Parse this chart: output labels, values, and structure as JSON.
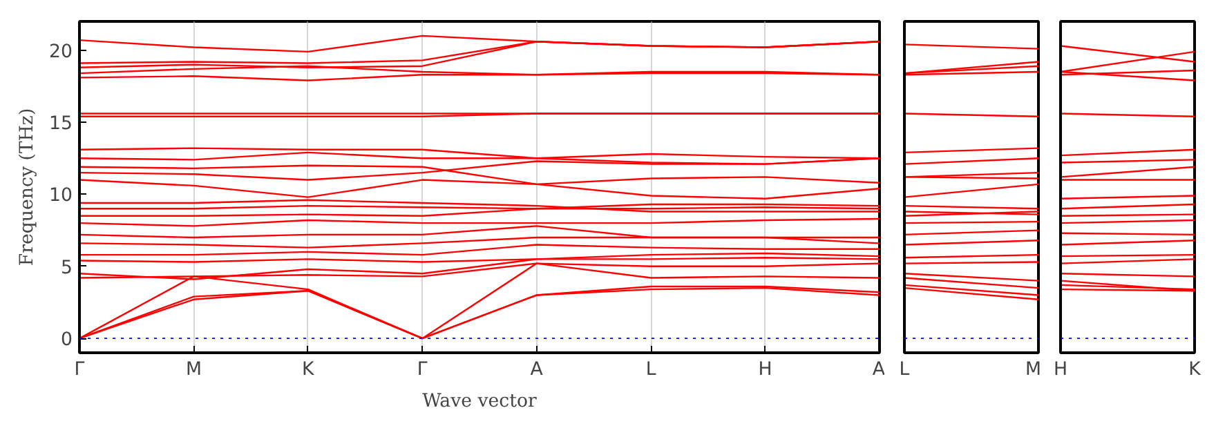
{
  "chart_data": [
    {
      "type": "line",
      "ylabel": "Frequency (THz)",
      "xlabel": "Wave vector",
      "categories": [
        "Γ",
        "M",
        "K",
        "Γ",
        "A",
        "L",
        "H",
        "A"
      ],
      "ylim": [
        -1,
        22
      ],
      "yticks": [
        0,
        5,
        10,
        15,
        20
      ],
      "grid": "x",
      "ref_lines": [
        {
          "axis": "y",
          "value": 0,
          "color": "#0000ff",
          "line_style": "dotted"
        }
      ],
      "series": [
        {
          "color": "#ff0000",
          "values": [
            0,
            2.7,
            3.3,
            0,
            3.0,
            3.4,
            3.5,
            3.0
          ]
        },
        {
          "color": "#ff0000",
          "values": [
            0,
            2.9,
            3.3,
            0,
            3.0,
            3.6,
            3.6,
            3.2
          ]
        },
        {
          "color": "#ff0000",
          "values": [
            0,
            4.3,
            3.4,
            0,
            5.2,
            4.2,
            4.3,
            4.2
          ]
        },
        {
          "color": "#ff0000",
          "values": [
            4.2,
            4.3,
            4.4,
            4.3,
            5.2,
            5.0,
            5.0,
            5.2
          ]
        },
        {
          "color": "#ff0000",
          "values": [
            4.5,
            4.1,
            4.8,
            4.5,
            5.5,
            5.5,
            5.6,
            5.5
          ]
        },
        {
          "color": "#ff0000",
          "values": [
            5.4,
            5.3,
            5.5,
            5.3,
            5.5,
            5.8,
            5.9,
            5.7
          ]
        },
        {
          "color": "#ff0000",
          "values": [
            5.8,
            5.8,
            6.0,
            5.8,
            6.5,
            6.3,
            6.2,
            6.2
          ]
        },
        {
          "color": "#ff0000",
          "values": [
            6.6,
            6.5,
            6.3,
            6.6,
            7.0,
            7.0,
            7.0,
            6.6
          ]
        },
        {
          "color": "#ff0000",
          "values": [
            7.2,
            7.0,
            7.2,
            7.2,
            7.8,
            7.0,
            7.0,
            7.0
          ]
        },
        {
          "color": "#ff0000",
          "values": [
            8.0,
            7.8,
            8.2,
            8.0,
            8.0,
            8.0,
            8.2,
            8.3
          ]
        },
        {
          "color": "#ff0000",
          "values": [
            8.5,
            8.5,
            8.6,
            8.5,
            9.0,
            9.0,
            9.1,
            9.0
          ]
        },
        {
          "color": "#ff0000",
          "values": [
            9.0,
            9.0,
            9.2,
            9.1,
            9.0,
            9.3,
            9.3,
            9.2
          ]
        },
        {
          "color": "#ff0000",
          "values": [
            9.4,
            9.4,
            9.6,
            9.4,
            9.2,
            8.8,
            8.8,
            8.8
          ]
        },
        {
          "color": "#ff0000",
          "values": [
            11.0,
            10.6,
            9.8,
            11.0,
            10.7,
            11.1,
            11.2,
            10.8
          ]
        },
        {
          "color": "#ff0000",
          "values": [
            11.5,
            11.4,
            11.0,
            11.5,
            12.3,
            12.1,
            12.1,
            12.5
          ]
        },
        {
          "color": "#ff0000",
          "values": [
            11.9,
            11.8,
            12.0,
            11.9,
            10.7,
            9.9,
            9.7,
            10.4
          ]
        },
        {
          "color": "#ff0000",
          "values": [
            12.5,
            12.4,
            12.9,
            12.5,
            12.5,
            12.8,
            12.6,
            12.5
          ]
        },
        {
          "color": "#ff0000",
          "values": [
            13.1,
            13.2,
            13.1,
            13.1,
            12.5,
            12.2,
            12.1,
            12.5
          ]
        },
        {
          "color": "#ff0000",
          "values": [
            15.4,
            15.4,
            15.4,
            15.4,
            15.6,
            15.6,
            15.6,
            15.6
          ]
        },
        {
          "color": "#ff0000",
          "values": [
            15.6,
            15.6,
            15.6,
            15.6,
            15.6,
            15.6,
            15.6,
            15.6
          ]
        },
        {
          "color": "#ff0000",
          "values": [
            18.1,
            18.2,
            17.9,
            18.3,
            18.3,
            18.4,
            18.4,
            18.3
          ]
        },
        {
          "color": "#ff0000",
          "values": [
            18.4,
            18.7,
            18.9,
            18.5,
            18.3,
            18.5,
            18.5,
            18.3
          ]
        },
        {
          "color": "#ff0000",
          "values": [
            18.8,
            19.0,
            18.8,
            18.9,
            20.6,
            20.3,
            20.2,
            20.6
          ]
        },
        {
          "color": "#ff0000",
          "values": [
            19.1,
            19.2,
            19.1,
            19.3,
            20.6,
            20.3,
            20.2,
            20.6
          ]
        },
        {
          "color": "#ff0000",
          "values": [
            20.7,
            20.2,
            19.9,
            21.0,
            20.6,
            20.3,
            20.2,
            20.6
          ]
        }
      ]
    },
    {
      "type": "line",
      "categories": [
        "L",
        "M"
      ],
      "ylim": [
        -1,
        22
      ],
      "yticks": [
        0,
        5,
        10,
        15,
        20
      ],
      "tick_labels": "x",
      "ref_lines": [
        {
          "axis": "y",
          "value": 0,
          "color": "#0000ff",
          "line_style": "dotted"
        }
      ],
      "series": [
        {
          "color": "#ff0000",
          "values": [
            20.4,
            20.1
          ]
        },
        {
          "color": "#ff0000",
          "values": [
            18.4,
            19.2
          ]
        },
        {
          "color": "#ff0000",
          "values": [
            18.4,
            18.9
          ]
        },
        {
          "color": "#ff0000",
          "values": [
            18.3,
            18.5
          ]
        },
        {
          "color": "#ff0000",
          "values": [
            15.6,
            15.4
          ]
        },
        {
          "color": "#ff0000",
          "values": [
            12.9,
            13.2
          ]
        },
        {
          "color": "#ff0000",
          "values": [
            12.1,
            12.5
          ]
        },
        {
          "color": "#ff0000",
          "values": [
            11.2,
            11.5
          ]
        },
        {
          "color": "#ff0000",
          "values": [
            11.2,
            11.1
          ]
        },
        {
          "color": "#ff0000",
          "values": [
            9.8,
            10.7
          ]
        },
        {
          "color": "#ff0000",
          "values": [
            9.2,
            9.0
          ]
        },
        {
          "color": "#ff0000",
          "values": [
            8.8,
            8.6
          ]
        },
        {
          "color": "#ff0000",
          "values": [
            8.5,
            8.8
          ]
        },
        {
          "color": "#ff0000",
          "values": [
            8.0,
            8.1
          ]
        },
        {
          "color": "#ff0000",
          "values": [
            7.2,
            7.5
          ]
        },
        {
          "color": "#ff0000",
          "values": [
            6.5,
            6.8
          ]
        },
        {
          "color": "#ff0000",
          "values": [
            5.6,
            5.8
          ]
        },
        {
          "color": "#ff0000",
          "values": [
            5.2,
            5.3
          ]
        },
        {
          "color": "#ff0000",
          "values": [
            4.5,
            4.0
          ]
        },
        {
          "color": "#ff0000",
          "values": [
            4.2,
            3.5
          ]
        },
        {
          "color": "#ff0000",
          "values": [
            3.7,
            3.0
          ]
        },
        {
          "color": "#ff0000",
          "values": [
            3.5,
            2.7
          ]
        }
      ]
    },
    {
      "type": "line",
      "categories": [
        "H",
        "K"
      ],
      "ylim": [
        -1,
        22
      ],
      "yticks": [
        0,
        5,
        10,
        15,
        20
      ],
      "tick_labels": "x",
      "ref_lines": [
        {
          "axis": "y",
          "value": 0,
          "color": "#0000ff",
          "line_style": "dotted"
        }
      ],
      "series": [
        {
          "color": "#ff0000",
          "values": [
            20.3,
            19.2
          ]
        },
        {
          "color": "#ff0000",
          "values": [
            18.5,
            19.9
          ]
        },
        {
          "color": "#ff0000",
          "values": [
            18.3,
            18.6
          ]
        },
        {
          "color": "#ff0000",
          "values": [
            18.5,
            17.9
          ]
        },
        {
          "color": "#ff0000",
          "values": [
            15.6,
            15.4
          ]
        },
        {
          "color": "#ff0000",
          "values": [
            12.7,
            13.1
          ]
        },
        {
          "color": "#ff0000",
          "values": [
            12.2,
            12.4
          ]
        },
        {
          "color": "#ff0000",
          "values": [
            11.2,
            11.9
          ]
        },
        {
          "color": "#ff0000",
          "values": [
            11.0,
            11.0
          ]
        },
        {
          "color": "#ff0000",
          "values": [
            9.7,
            9.9
          ]
        },
        {
          "color": "#ff0000",
          "values": [
            9.0,
            9.3
          ]
        },
        {
          "color": "#ff0000",
          "values": [
            8.5,
            8.6
          ]
        },
        {
          "color": "#ff0000",
          "values": [
            8.0,
            8.2
          ]
        },
        {
          "color": "#ff0000",
          "values": [
            7.3,
            7.2
          ]
        },
        {
          "color": "#ff0000",
          "values": [
            6.5,
            6.8
          ]
        },
        {
          "color": "#ff0000",
          "values": [
            5.7,
            5.8
          ]
        },
        {
          "color": "#ff0000",
          "values": [
            5.2,
            5.5
          ]
        },
        {
          "color": "#ff0000",
          "values": [
            4.5,
            4.3
          ]
        },
        {
          "color": "#ff0000",
          "values": [
            4.0,
            3.3
          ]
        },
        {
          "color": "#ff0000",
          "values": [
            3.7,
            3.4
          ]
        },
        {
          "color": "#ff0000",
          "values": [
            3.4,
            3.3
          ]
        }
      ]
    }
  ]
}
